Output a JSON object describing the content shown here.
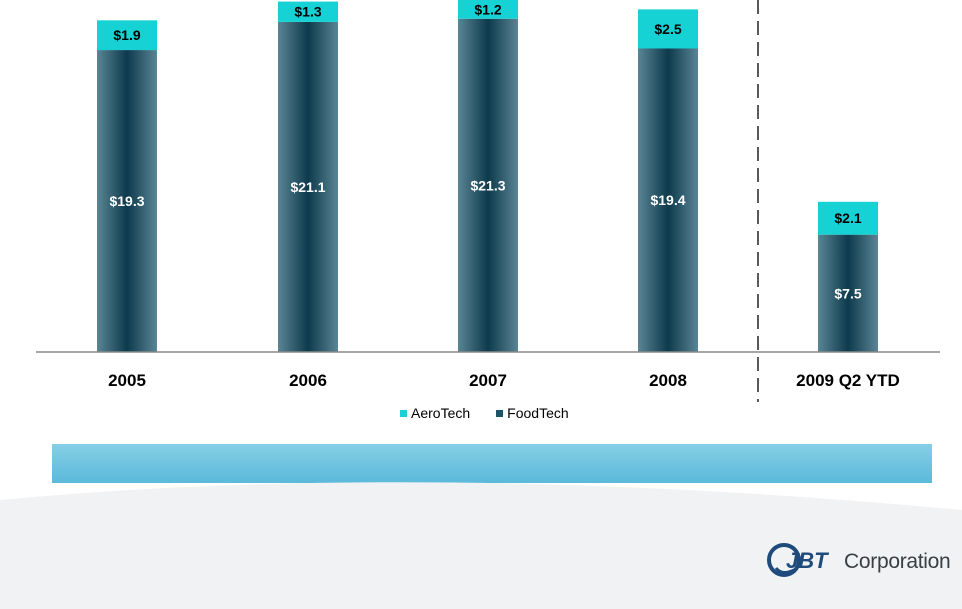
{
  "chart_data": {
    "type": "bar",
    "stacked": true,
    "categories": [
      "2005",
      "2006",
      "2007",
      "2008",
      "2009 Q2 YTD"
    ],
    "series": [
      {
        "name": "FoodTech",
        "values": [
          19.3,
          21.1,
          21.3,
          19.4,
          7.5
        ],
        "labels": [
          "$19.3",
          "$21.1",
          "$21.3",
          "$19.4",
          "$7.5"
        ],
        "color": "#1e5468"
      },
      {
        "name": "AeroTech",
        "values": [
          1.9,
          1.3,
          1.2,
          2.5,
          2.1
        ],
        "labels": [
          "$1.9",
          "$1.3",
          "$1.2",
          "$2.5",
          "$2.1"
        ],
        "color": "#16d2d4"
      }
    ],
    "ylim": [
      0,
      22.5
    ],
    "legend_position": "bottom-center",
    "divider_before_category": "2009 Q2 YTD"
  },
  "logo": {
    "mark": "JBT",
    "text": "Corporation"
  }
}
